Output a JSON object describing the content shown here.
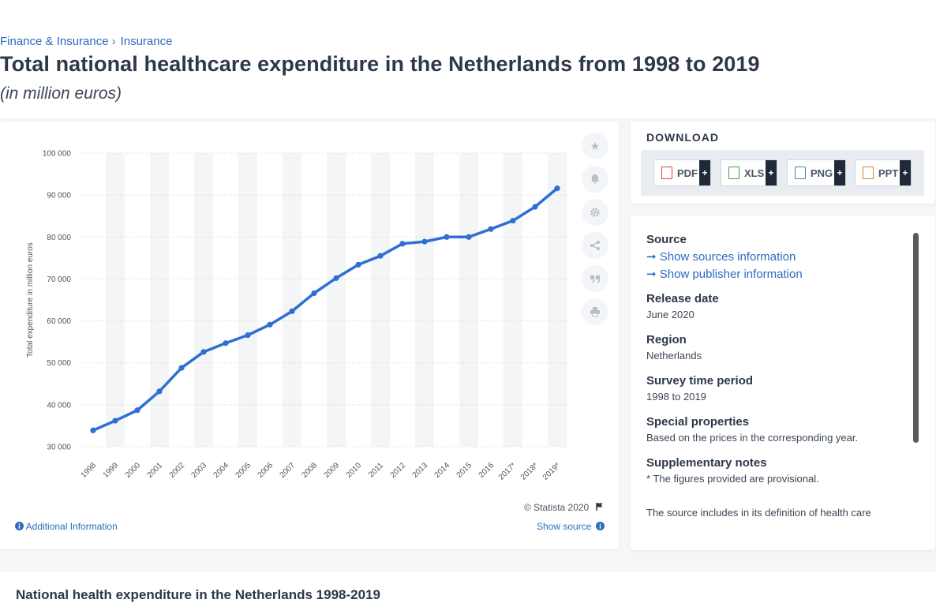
{
  "breadcrumb": {
    "item1": "Finance & Insurance",
    "sep": "›",
    "item2": "Insurance"
  },
  "title": "Total national healthcare expenditure in the Netherlands from 1998 to 2019",
  "subtitle": "(in million euros)",
  "chart_data": {
    "type": "line",
    "title": "",
    "ylabel": "Total expenditure in million euros",
    "xlabel": "",
    "categories": [
      "1998",
      "1999",
      "2000",
      "2001",
      "2002",
      "2003",
      "2004",
      "2005",
      "2006",
      "2007",
      "2008",
      "2009",
      "2010",
      "2011",
      "2012",
      "2013",
      "2014",
      "2015",
      "2016",
      "2017*",
      "2018*",
      "2019*"
    ],
    "values": [
      33900,
      36200,
      38700,
      43200,
      48800,
      52600,
      54700,
      56600,
      59100,
      62300,
      66600,
      70200,
      73400,
      75500,
      78400,
      78900,
      80000,
      80000,
      81900,
      83900,
      87200,
      91600
    ],
    "ylim": [
      30000,
      100000
    ],
    "yticks": [
      "30 000",
      "40 000",
      "50 000",
      "60 000",
      "70 000",
      "80 000",
      "90 000",
      "100 000"
    ],
    "ytick_values": [
      30000,
      40000,
      50000,
      60000,
      70000,
      80000,
      90000,
      100000
    ],
    "grid": true,
    "line_color": "#2f6fd4"
  },
  "tools": [
    "star-icon",
    "bell-icon",
    "gear-icon",
    "share-icon",
    "quote-icon",
    "print-icon"
  ],
  "copyright": "© Statista 2020",
  "additional_info": "Additional Information",
  "show_source": "Show source",
  "download": {
    "title": "DOWNLOAD",
    "buttons": [
      {
        "label": "PDF",
        "color": "#d9443b"
      },
      {
        "label": "XLS",
        "color": "#3f9b4a"
      },
      {
        "label": "PNG",
        "color": "#3b82c4"
      },
      {
        "label": "PPT",
        "color": "#e0812f"
      }
    ],
    "plus": "+"
  },
  "info": {
    "source_label": "Source",
    "show_sources": "Show sources information",
    "show_publisher": "Show publisher information",
    "release_label": "Release date",
    "release_value": "June 2020",
    "region_label": "Region",
    "region_value": "Netherlands",
    "survey_label": "Survey time period",
    "survey_value": "1998 to 2019",
    "special_label": "Special properties",
    "special_value": "Based on the prices in the corresponding year.",
    "supp_label": "Supplementary notes",
    "supp_value": "* The figures provided are provisional.",
    "supp_value2": "The source includes in its definition of health care"
  },
  "bottom_title": "National health expenditure in the Netherlands 1998-2019"
}
